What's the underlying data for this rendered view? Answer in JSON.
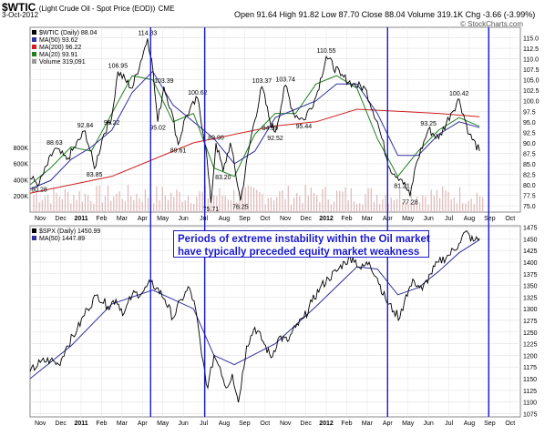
{
  "header": {
    "symbol": "$WTIC",
    "description": "(Light Crude Oil - Spot Price (EOD))",
    "exchange": "CME",
    "date": "3-Oct-2012",
    "ohlc": "Open 91.64  High 91.82  Low 87.70  Close 88.04  Volume 319.1K  Chg -3.66 (-3.99%)",
    "watermark": "© StockCharts.com"
  },
  "colors": {
    "price": "#000000",
    "ma50": "#3030a0",
    "ma200": "#d02020",
    "ma20": "#208020",
    "volume": "#e0b8b8",
    "event_line": "#1a1acc",
    "annotation_border": "#1a1acc",
    "annotation_text": "#1a1acc"
  },
  "chart_data": [
    {
      "type": "line",
      "panel": "top",
      "legend": [
        {
          "label": "$WTIC (Daily) 88.04",
          "color": "#000000"
        },
        {
          "label": "MA(50) 93.62",
          "color": "#3030a0"
        },
        {
          "label": "MA(200) 96.22",
          "color": "#d02020"
        },
        {
          "label": "MA(20) 93.91",
          "color": "#208020"
        },
        {
          "label": "Volume 319,091",
          "color": "#999999"
        }
      ],
      "ylim": [
        73.5,
        117.5
      ],
      "yticks": [
        75.0,
        77.5,
        80.0,
        82.5,
        85.0,
        87.5,
        90.0,
        92.5,
        95.0,
        97.5,
        100.0,
        102.5,
        105.0,
        107.5,
        110.0,
        112.5,
        115.0
      ],
      "volume_ticks": [
        "200K",
        "400K",
        "600K",
        "800K"
      ],
      "volume_max": 900,
      "xticks": [
        "Nov",
        "Dec",
        "2011",
        "Feb",
        "Mar",
        "Apr",
        "May",
        "Jun",
        "Jul",
        "Aug",
        "Sep",
        "Oct",
        "Nov",
        "Dec",
        "2012",
        "Feb",
        "Mar",
        "Apr",
        "May",
        "Jun",
        "Jul",
        "Aug",
        "Sep",
        "Oct"
      ],
      "x_months_start": 0,
      "x_months_end": 24,
      "price_points": [
        [
          0,
          81.5
        ],
        [
          0.45,
          80.28
        ],
        [
          1.2,
          88.63
        ],
        [
          1.8,
          86
        ],
        [
          2.7,
          92.84
        ],
        [
          3.15,
          83.85
        ],
        [
          3.6,
          92
        ],
        [
          4.0,
          96.22
        ],
        [
          4.3,
          106.95
        ],
        [
          5.0,
          103
        ],
        [
          5.75,
          114.83
        ],
        [
          5.95,
          110
        ],
        [
          6.25,
          95.02
        ],
        [
          6.55,
          103.39
        ],
        [
          6.9,
          98
        ],
        [
          7.25,
          89.61
        ],
        [
          7.6,
          96
        ],
        [
          8.2,
          100.62
        ],
        [
          8.6,
          89
        ],
        [
          8.85,
          75.71
        ],
        [
          9.1,
          89.9
        ],
        [
          9.45,
          83.2
        ],
        [
          9.8,
          90
        ],
        [
          10.3,
          76.25
        ],
        [
          10.8,
          91
        ],
        [
          11.35,
          103.37
        ],
        [
          11.75,
          94.99
        ],
        [
          12.0,
          92.52
        ],
        [
          12.5,
          103.74
        ],
        [
          12.9,
          97
        ],
        [
          13.4,
          95.44
        ],
        [
          14.0,
          101
        ],
        [
          14.5,
          110.55
        ],
        [
          15.2,
          106
        ],
        [
          15.8,
          104
        ],
        [
          16.4,
          103
        ],
        [
          17.0,
          95
        ],
        [
          17.6,
          84
        ],
        [
          18.2,
          81.21
        ],
        [
          18.6,
          77.28
        ],
        [
          18.9,
          85
        ],
        [
          19.5,
          93.25
        ],
        [
          20.0,
          91
        ],
        [
          20.6,
          97
        ],
        [
          21.0,
          100.42
        ],
        [
          21.5,
          92
        ],
        [
          22.0,
          88.04
        ]
      ],
      "ma50_points": [
        [
          0,
          79
        ],
        [
          1,
          81
        ],
        [
          2,
          86
        ],
        [
          3,
          89
        ],
        [
          4,
          93
        ],
        [
          5,
          102
        ],
        [
          6,
          107
        ],
        [
          7,
          99
        ],
        [
          8,
          95
        ],
        [
          9,
          91
        ],
        [
          10,
          85
        ],
        [
          11,
          88
        ],
        [
          12,
          96
        ],
        [
          13,
          98
        ],
        [
          14,
          100
        ],
        [
          15,
          104
        ],
        [
          16,
          104
        ],
        [
          17,
          97
        ],
        [
          18,
          87
        ],
        [
          19,
          87
        ],
        [
          20,
          92
        ],
        [
          21,
          95
        ],
        [
          22,
          93.62
        ]
      ],
      "ma200_points": [
        [
          0,
          78
        ],
        [
          4,
          82
        ],
        [
          8,
          90
        ],
        [
          12,
          94
        ],
        [
          14,
          95
        ],
        [
          16,
          98
        ],
        [
          18,
          97.5
        ],
        [
          20,
          97
        ],
        [
          22,
          96.22
        ]
      ],
      "ma20_points": [
        [
          0,
          80
        ],
        [
          1,
          84
        ],
        [
          2,
          89
        ],
        [
          3,
          88
        ],
        [
          4,
          97
        ],
        [
          5,
          106
        ],
        [
          6,
          105
        ],
        [
          7,
          95
        ],
        [
          8,
          97
        ],
        [
          9,
          84
        ],
        [
          10,
          82
        ],
        [
          11,
          92
        ],
        [
          12,
          97
        ],
        [
          13,
          97
        ],
        [
          14,
          104
        ],
        [
          15,
          106
        ],
        [
          16,
          103
        ],
        [
          17,
          91
        ],
        [
          18,
          82
        ],
        [
          19,
          88
        ],
        [
          20,
          93
        ],
        [
          21,
          96
        ],
        [
          22,
          93.91
        ]
      ],
      "annotations": [
        {
          "label": "80.28",
          "x": 0.45,
          "y": 80.28,
          "pos": "below"
        },
        {
          "label": "88.63",
          "x": 1.2,
          "y": 88.63,
          "pos": "above"
        },
        {
          "label": "92.84",
          "x": 2.7,
          "y": 92.84,
          "pos": "above"
        },
        {
          "label": "83.85",
          "x": 3.15,
          "y": 83.85,
          "pos": "below"
        },
        {
          "label": "96.22",
          "x": 4.0,
          "y": 96.22,
          "pos": "below"
        },
        {
          "label": "106.95",
          "x": 4.3,
          "y": 106.95,
          "pos": "above"
        },
        {
          "label": "114.83",
          "x": 5.75,
          "y": 114.83,
          "pos": "above"
        },
        {
          "label": "103.39",
          "x": 6.55,
          "y": 103.39,
          "pos": "above"
        },
        {
          "label": "95.02",
          "x": 6.25,
          "y": 95.02,
          "pos": "below"
        },
        {
          "label": "89.61",
          "x": 7.25,
          "y": 89.61,
          "pos": "below"
        },
        {
          "label": "100.62",
          "x": 8.2,
          "y": 100.62,
          "pos": "above"
        },
        {
          "label": "89.90",
          "x": 9.1,
          "y": 89.9,
          "pos": "above"
        },
        {
          "label": "83.20",
          "x": 9.45,
          "y": 83.2,
          "pos": "below"
        },
        {
          "label": "75.71",
          "x": 8.85,
          "y": 75.71,
          "pos": "below"
        },
        {
          "label": "76.25",
          "x": 10.3,
          "y": 76.25,
          "pos": "below"
        },
        {
          "label": "103.37",
          "x": 11.35,
          "y": 103.37,
          "pos": "above"
        },
        {
          "label": "94.99",
          "x": 11.75,
          "y": 94.99,
          "pos": "below"
        },
        {
          "label": "92.52",
          "x": 12.0,
          "y": 92.52,
          "pos": "below"
        },
        {
          "label": "103.74",
          "x": 12.5,
          "y": 103.74,
          "pos": "above"
        },
        {
          "label": "95.44",
          "x": 13.4,
          "y": 95.44,
          "pos": "below"
        },
        {
          "label": "110.55",
          "x": 14.5,
          "y": 110.55,
          "pos": "above"
        },
        {
          "label": "81.21",
          "x": 18.2,
          "y": 81.21,
          "pos": "below"
        },
        {
          "label": "77.28",
          "x": 18.6,
          "y": 77.28,
          "pos": "below"
        },
        {
          "label": "93.25",
          "x": 19.5,
          "y": 93.25,
          "pos": "above"
        },
        {
          "label": "100.42",
          "x": 21.0,
          "y": 100.42,
          "pos": "above"
        }
      ]
    },
    {
      "type": "line",
      "panel": "bottom",
      "legend": [
        {
          "label": "$SPX (Daily) 1450.99",
          "color": "#000000"
        },
        {
          "label": "MA(50) 1447.89",
          "color": "#3030a0"
        }
      ],
      "ylim": [
        1068,
        1478
      ],
      "yticks": [
        1075,
        1100,
        1125,
        1150,
        1175,
        1200,
        1225,
        1250,
        1275,
        1300,
        1325,
        1350,
        1375,
        1400,
        1425,
        1450,
        1475
      ],
      "xticks": [
        "Nov",
        "Dec",
        "2011",
        "Feb",
        "Mar",
        "Apr",
        "May",
        "Jun",
        "Jul",
        "Aug",
        "Sep",
        "Oct",
        "Nov",
        "Dec",
        "2012",
        "Feb",
        "Mar",
        "Apr",
        "May",
        "Jun",
        "Jul",
        "Aug",
        "Sep",
        "Oct"
      ],
      "price_points": [
        [
          0,
          1165
        ],
        [
          0.5,
          1185
        ],
        [
          1.0,
          1190
        ],
        [
          1.4,
          1180
        ],
        [
          1.8,
          1220
        ],
        [
          2.3,
          1255
        ],
        [
          2.8,
          1300
        ],
        [
          3.3,
          1330
        ],
        [
          3.8,
          1305
        ],
        [
          4.2,
          1320
        ],
        [
          4.6,
          1290
        ],
        [
          5.0,
          1330
        ],
        [
          5.5,
          1335
        ],
        [
          5.9,
          1355
        ],
        [
          6.2,
          1345
        ],
        [
          6.6,
          1320
        ],
        [
          7.0,
          1280
        ],
        [
          7.4,
          1320
        ],
        [
          7.8,
          1345
        ],
        [
          8.1,
          1300
        ],
        [
          8.4,
          1200
        ],
        [
          8.7,
          1130
        ],
        [
          9.0,
          1200
        ],
        [
          9.3,
          1175
        ],
        [
          9.6,
          1130
        ],
        [
          9.9,
          1160
        ],
        [
          10.2,
          1099
        ],
        [
          10.6,
          1220
        ],
        [
          11.0,
          1260
        ],
        [
          11.4,
          1230
        ],
        [
          11.8,
          1195
        ],
        [
          12.2,
          1240
        ],
        [
          12.6,
          1230
        ],
        [
          13.0,
          1260
        ],
        [
          13.4,
          1280
        ],
        [
          13.8,
          1315
        ],
        [
          14.2,
          1345
        ],
        [
          14.6,
          1365
        ],
        [
          15.0,
          1380
        ],
        [
          15.4,
          1400
        ],
        [
          15.8,
          1410
        ],
        [
          16.2,
          1385
        ],
        [
          16.6,
          1400
        ],
        [
          17.0,
          1365
        ],
        [
          17.4,
          1320
        ],
        [
          17.8,
          1295
        ],
        [
          18.1,
          1280
        ],
        [
          18.4,
          1330
        ],
        [
          18.8,
          1360
        ],
        [
          19.2,
          1340
        ],
        [
          19.6,
          1375
        ],
        [
          20.0,
          1400
        ],
        [
          20.5,
          1415
        ],
        [
          21.0,
          1440
        ],
        [
          21.3,
          1465
        ],
        [
          21.7,
          1445
        ],
        [
          22.0,
          1451
        ]
      ],
      "ma50_points": [
        [
          0,
          1150
        ],
        [
          2,
          1220
        ],
        [
          4,
          1310
        ],
        [
          6,
          1340
        ],
        [
          8,
          1300
        ],
        [
          9,
          1200
        ],
        [
          10,
          1180
        ],
        [
          12,
          1225
        ],
        [
          14,
          1305
        ],
        [
          16,
          1390
        ],
        [
          17,
          1385
        ],
        [
          18,
          1330
        ],
        [
          19,
          1345
        ],
        [
          20,
          1380
        ],
        [
          21,
          1420
        ],
        [
          22,
          1447.89
        ]
      ]
    }
  ],
  "event_lines": [
    {
      "name": "event-line-may-2011",
      "x": 5.9
    },
    {
      "name": "event-line-aug-2011",
      "x": 8.55
    },
    {
      "name": "event-line-may-2012",
      "x": 17.5
    },
    {
      "name": "event-line-sep-2012",
      "x": 22.45
    }
  ],
  "annotation_box": {
    "line1": "Periods of extreme instability within the Oil market",
    "line2": "have typically preceded equity market weakness"
  }
}
